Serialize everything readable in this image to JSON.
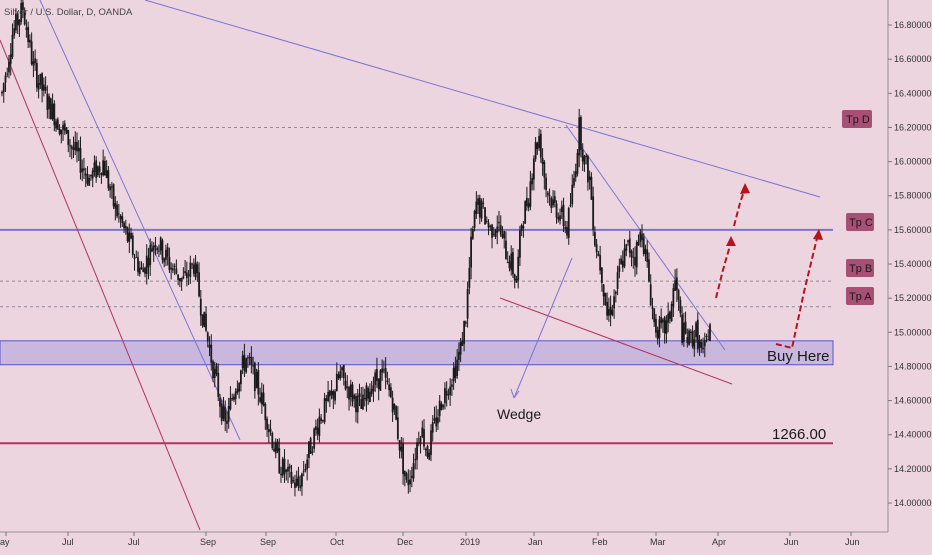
{
  "chart_data": {
    "type": "candlestick",
    "title": "Silver / U.S. Dollar, D, OANDA",
    "ylim": [
      13.9,
      17.0
    ],
    "y_ticks": [
      "14.00000",
      "14.20000",
      "14.40000",
      "14.60000",
      "14.80000",
      "15.00000",
      "15.20000",
      "15.40000",
      "15.60000",
      "15.80000",
      "16.00000",
      "16.20000",
      "16.40000",
      "16.60000",
      "16.80000"
    ],
    "x_ticks": [
      "ay",
      "Jul",
      "Jul",
      "Sep",
      "Sep",
      "Oct",
      "Dec",
      "2019",
      "Jan",
      "Feb",
      "Mar",
      "Apr",
      "Jun",
      "Jun"
    ],
    "price_anchors": [
      [
        0,
        16.4
      ],
      [
        6,
        16.75
      ],
      [
        12,
        16.9
      ],
      [
        18,
        16.55
      ],
      [
        26,
        16.35
      ],
      [
        34,
        16.2
      ],
      [
        42,
        16.05
      ],
      [
        50,
        15.9
      ],
      [
        58,
        16.0
      ],
      [
        64,
        15.75
      ],
      [
        72,
        15.55
      ],
      [
        80,
        15.35
      ],
      [
        88,
        15.55
      ],
      [
        96,
        15.4
      ],
      [
        104,
        15.3
      ],
      [
        110,
        15.4
      ],
      [
        116,
        15.05
      ],
      [
        122,
        14.75
      ],
      [
        128,
        14.45
      ],
      [
        134,
        14.7
      ],
      [
        140,
        14.85
      ],
      [
        146,
        14.7
      ],
      [
        152,
        14.5
      ],
      [
        158,
        14.25
      ],
      [
        164,
        14.15
      ],
      [
        170,
        14.1
      ],
      [
        176,
        14.3
      ],
      [
        182,
        14.5
      ],
      [
        188,
        14.6
      ],
      [
        194,
        14.75
      ],
      [
        200,
        14.65
      ],
      [
        206,
        14.55
      ],
      [
        212,
        14.7
      ],
      [
        218,
        14.75
      ],
      [
        224,
        14.6
      ],
      [
        228,
        14.35
      ],
      [
        232,
        14.1
      ],
      [
        236,
        14.25
      ],
      [
        240,
        14.45
      ],
      [
        244,
        14.3
      ],
      [
        248,
        14.45
      ],
      [
        252,
        14.6
      ],
      [
        256,
        14.7
      ],
      [
        260,
        14.8
      ],
      [
        263,
        14.9
      ],
      [
        266,
        15.1
      ],
      [
        269,
        15.5
      ],
      [
        272,
        15.75
      ],
      [
        276,
        15.7
      ],
      [
        280,
        15.6
      ],
      [
        284,
        15.65
      ],
      [
        288,
        15.5
      ],
      [
        292,
        15.4
      ],
      [
        295,
        15.3
      ],
      [
        298,
        15.65
      ],
      [
        302,
        15.8
      ],
      [
        305,
        16.05
      ],
      [
        308,
        16.15
      ],
      [
        312,
        15.85
      ],
      [
        316,
        15.75
      ],
      [
        320,
        15.7
      ],
      [
        324,
        15.6
      ],
      [
        328,
        15.9
      ],
      [
        331,
        16.2
      ],
      [
        334,
        16.0
      ],
      [
        337,
        15.9
      ],
      [
        340,
        15.55
      ],
      [
        344,
        15.35
      ],
      [
        347,
        15.1
      ],
      [
        351,
        15.2
      ],
      [
        355,
        15.4
      ],
      [
        359,
        15.5
      ],
      [
        363,
        15.45
      ],
      [
        367,
        15.6
      ],
      [
        371,
        15.3
      ],
      [
        374,
        15.05
      ],
      [
        378,
        15.0
      ],
      [
        382,
        15.05
      ],
      [
        386,
        15.3
      ],
      [
        390,
        15.0
      ],
      [
        394,
        14.95
      ],
      [
        398,
        15.0
      ],
      [
        402,
        14.85
      ],
      [
        406,
        15.05
      ]
    ],
    "horizontal_levels": [
      {
        "label": "Tp D",
        "value": 16.2,
        "style": "dashed"
      },
      {
        "label": "Tp C",
        "value": 15.6,
        "style": "solid"
      },
      {
        "label": "Tp B",
        "value": 15.3,
        "style": "dashed"
      },
      {
        "label": "Tp A",
        "value": 15.15,
        "style": "dashed"
      },
      {
        "label": "1266.00",
        "value": 14.35,
        "style": "solid"
      }
    ],
    "zone": {
      "label": "Buy Here",
      "y_top": 14.95,
      "y_bottom": 14.81
    },
    "annotations": [
      "Wedge"
    ],
    "colors": {
      "background": "#ecd5de",
      "candle": "#1a1a1a",
      "line_blue": "#7b74d6",
      "line_red": "#b4325a",
      "arrow": "#b5141e",
      "tp_box": "#a84f76"
    }
  }
}
